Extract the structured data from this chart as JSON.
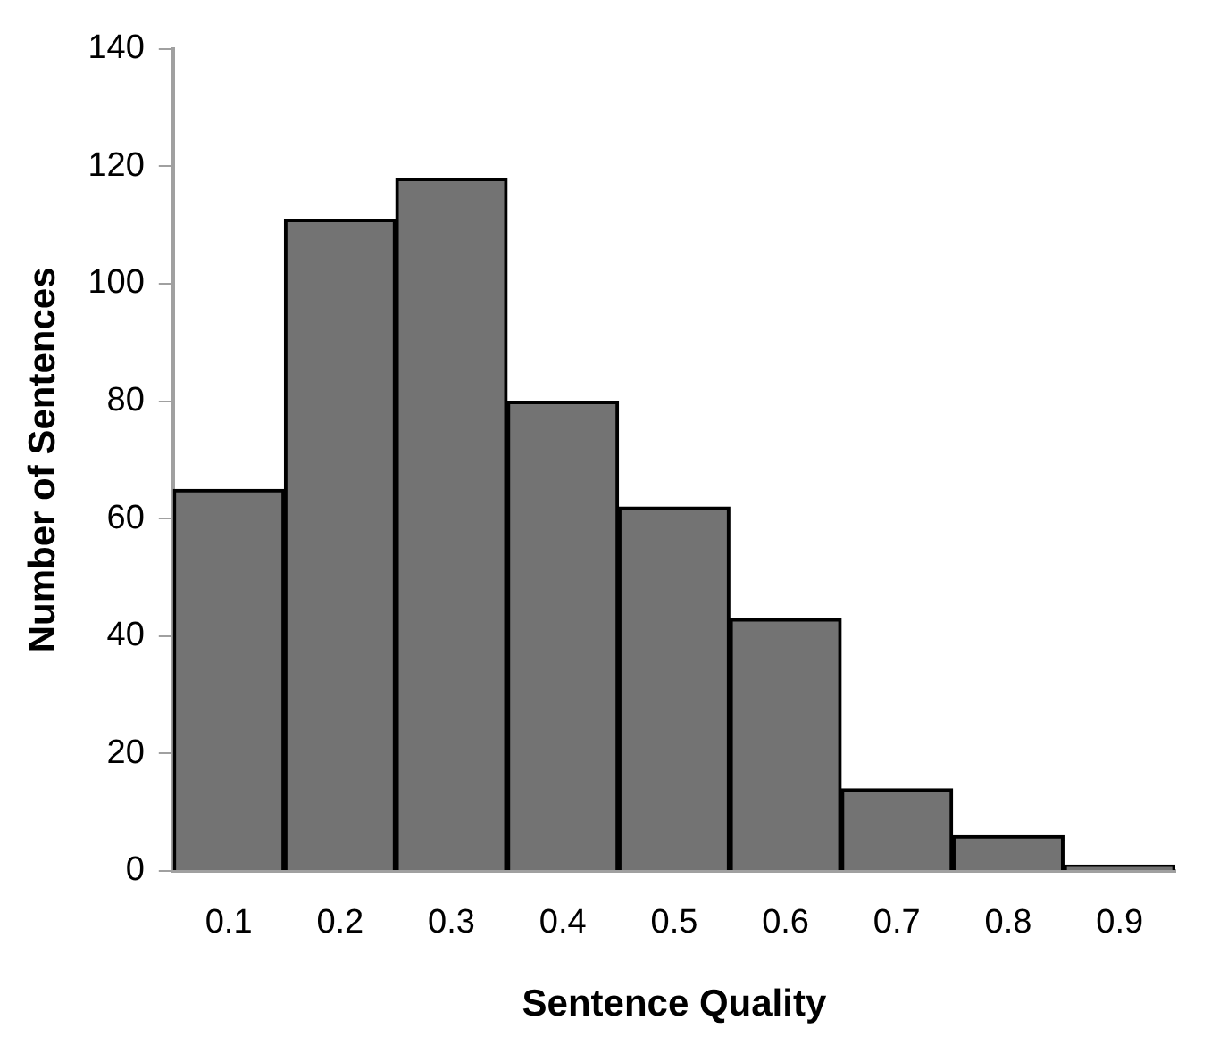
{
  "chart_data": {
    "type": "bar",
    "xlabel": "Sentence Quality",
    "ylabel": "Number of Sentences",
    "categories": [
      "0.1",
      "0.2",
      "0.3",
      "0.4",
      "0.5",
      "0.6",
      "0.7",
      "0.8",
      "0.9"
    ],
    "values": [
      65,
      111,
      118,
      80,
      62,
      43,
      14,
      6,
      1
    ],
    "color": "#737373",
    "ylim": [
      0,
      140
    ],
    "yticks": [
      0,
      20,
      40,
      60,
      80,
      100,
      120,
      140
    ],
    "grid": false
  }
}
